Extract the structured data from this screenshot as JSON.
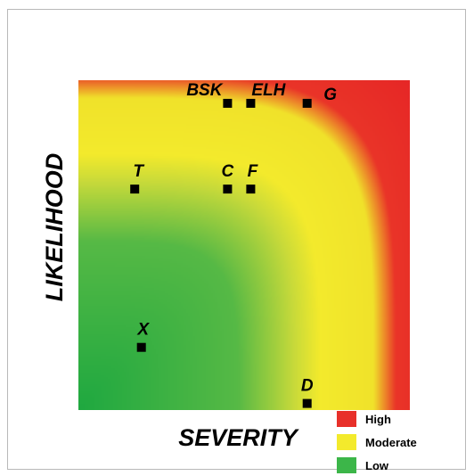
{
  "chart_data": {
    "type": "heatmap",
    "title": "",
    "xlabel": "SEVERITY",
    "ylabel": "LIKELIHOOD",
    "xlim": [
      0,
      1
    ],
    "ylim": [
      0,
      1
    ],
    "grid": false,
    "legend_position": "bottom-right",
    "regions": [
      {
        "label": "High",
        "color": "#e8302a"
      },
      {
        "label": "Moderate",
        "color": "#f3ea2c"
      },
      {
        "label": "Low",
        "color": "#3cb649"
      }
    ],
    "points": [
      {
        "label": "BSK",
        "x": 0.45,
        "y": 0.93
      },
      {
        "label": "ELH",
        "x": 0.52,
        "y": 0.93
      },
      {
        "label": "G",
        "x": 0.69,
        "y": 0.93
      },
      {
        "label": "T",
        "x": 0.17,
        "y": 0.67
      },
      {
        "label": "C",
        "x": 0.45,
        "y": 0.67
      },
      {
        "label": "F",
        "x": 0.52,
        "y": 0.67
      },
      {
        "label": "X",
        "x": 0.19,
        "y": 0.19
      },
      {
        "label": "D",
        "x": 0.69,
        "y": 0.02
      }
    ]
  }
}
